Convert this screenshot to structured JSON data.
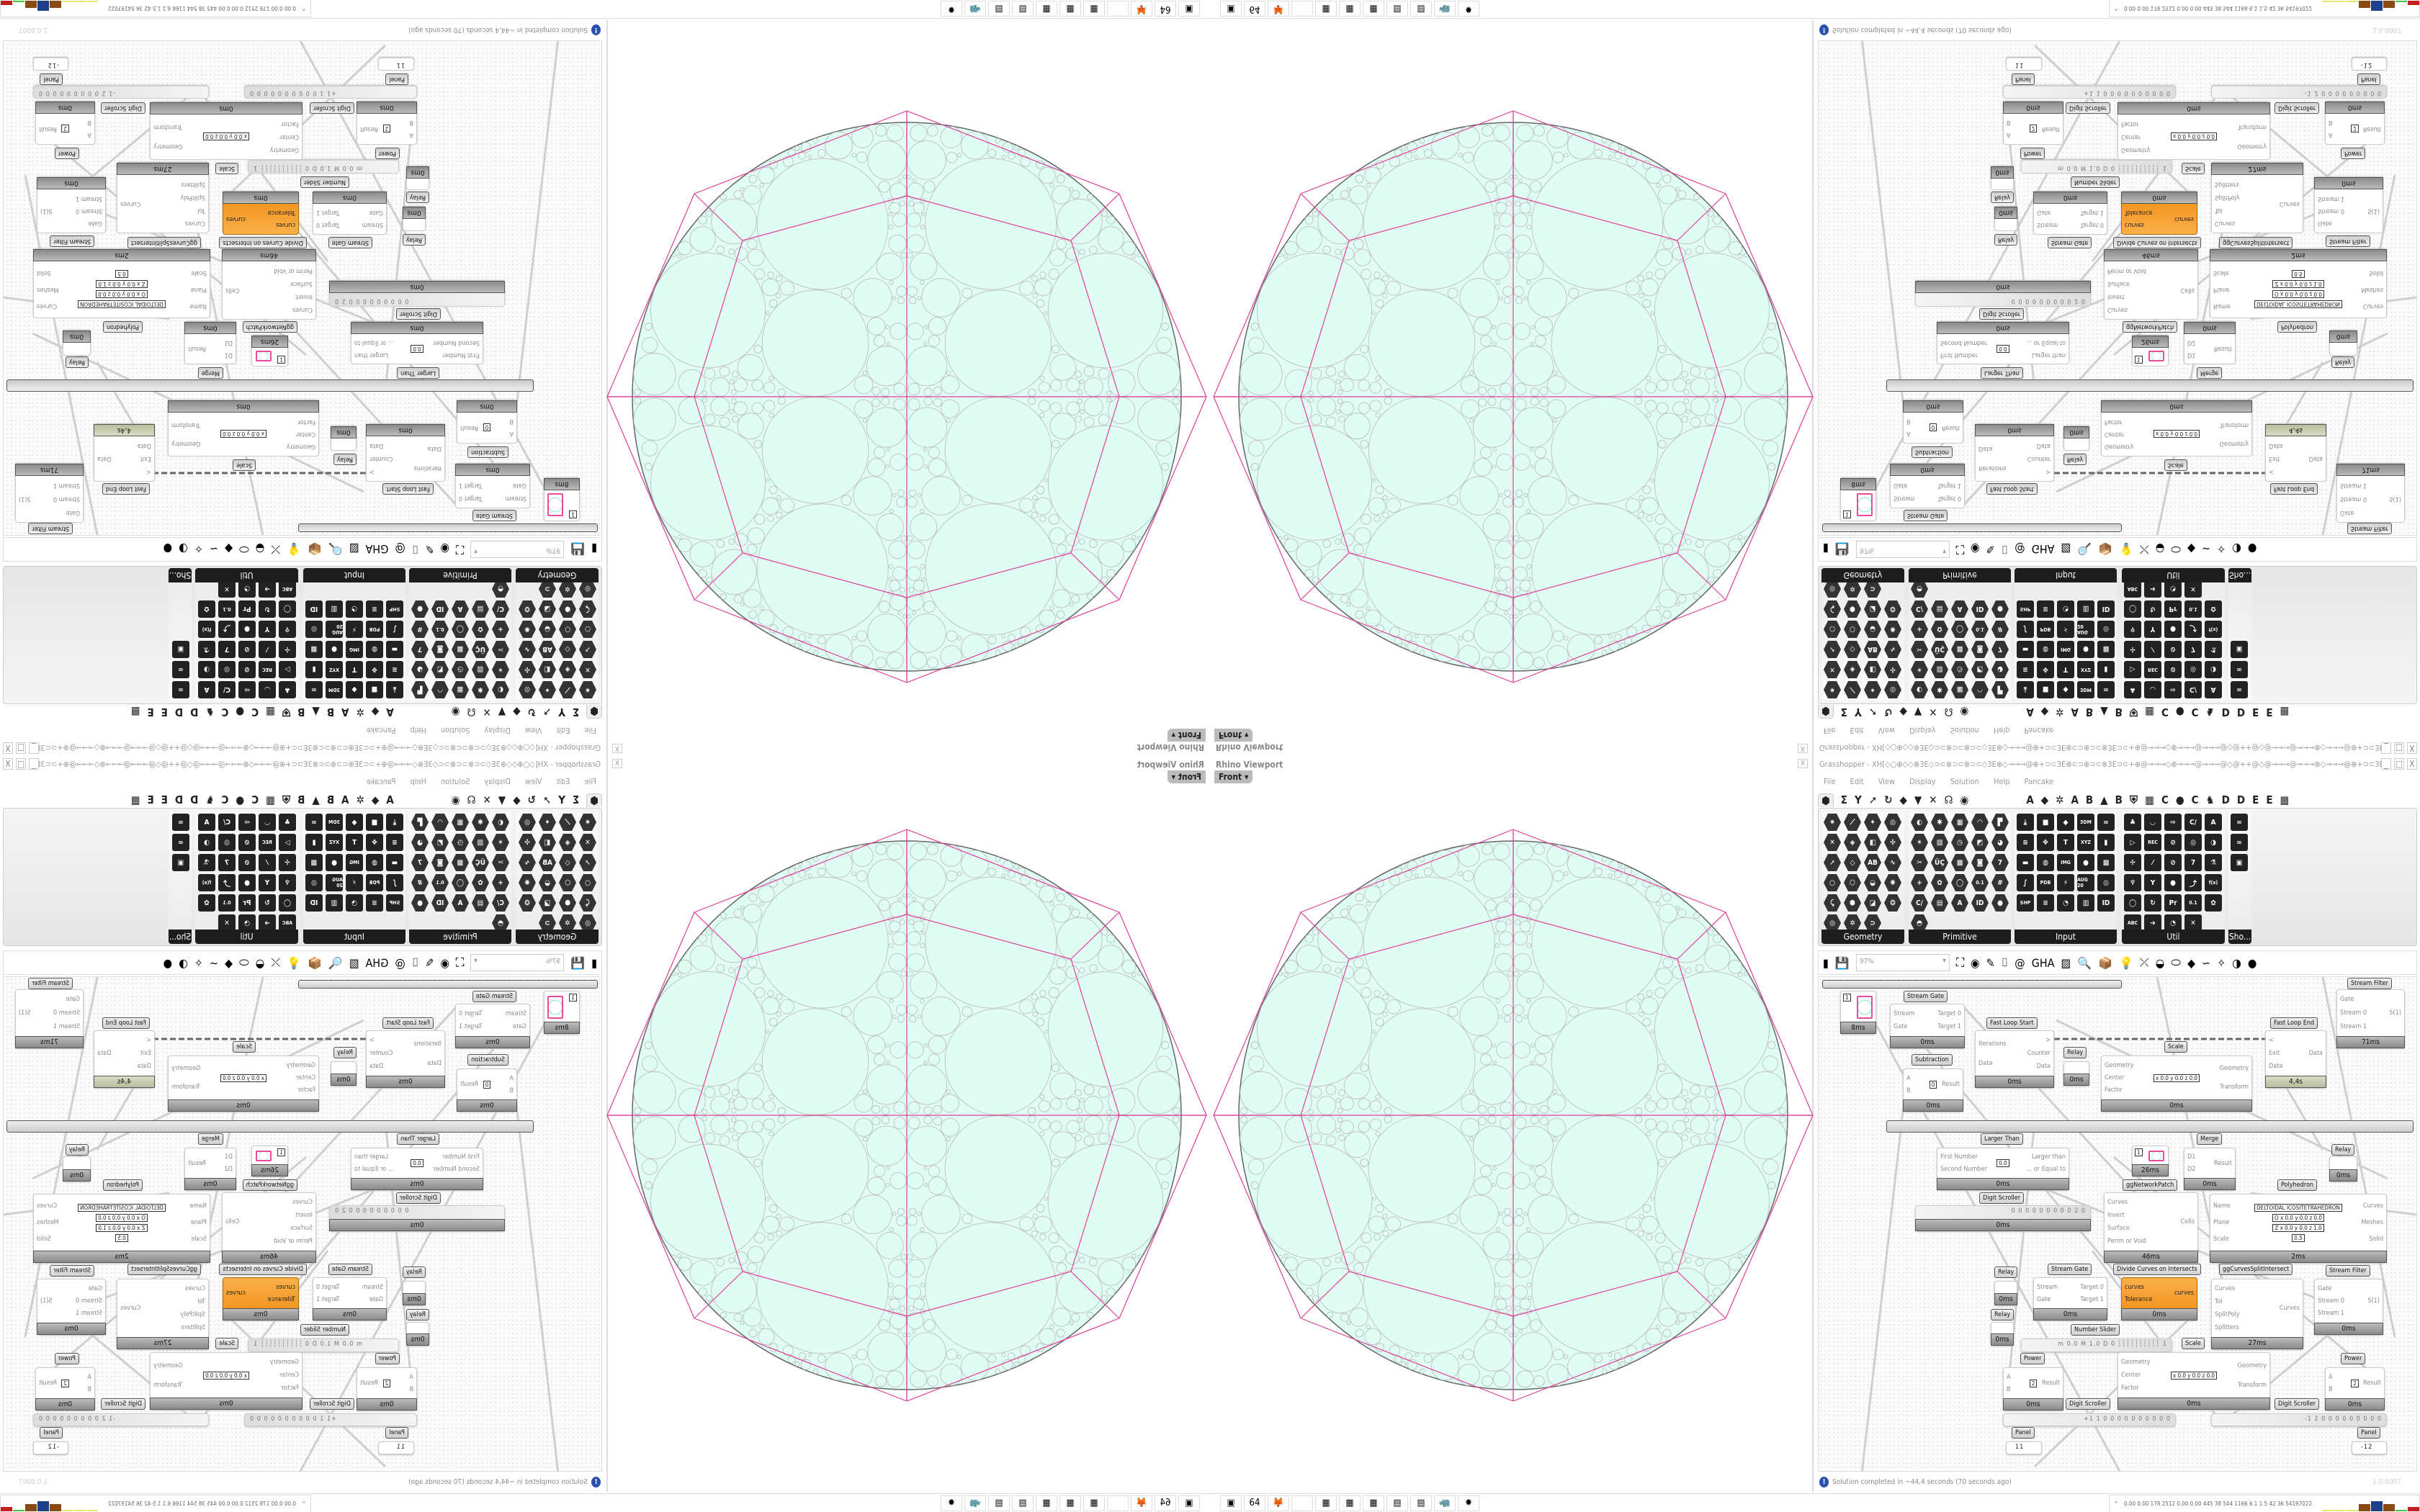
{
  "viewport": {
    "title": "Rhino Viewport",
    "view": "Front",
    "close": "X",
    "colors": {
      "fill": "#e0fdf4",
      "circle_stroke": "#c0c4c4",
      "boundary": "#666666",
      "polygon": "#e0409a"
    }
  },
  "grasshopper": {
    "title": "Grasshopper - XH[◇○⊕◇◇⊕3E◇⊃⊂⊗⊃⊂⊗⊃⊂◇3E⊕◇⊸⊸⊸@⊕+⊃⊂3E⊗⊂⊃⊗⊃⊂⊗3E⊃⊂+⊕@⊸⊸⊸◇⊗⊸⊸⊸@⊸⊸⊸@◇@++@◇@⊸⊸⊸@⊸⊸⊸⊗◇⊸⊸⊸@⊕+⊃⊂3E⊗⊂⊃⊗⊃⊂⊗⊃⊂...",
    "window_controls": [
      "_",
      "□",
      "X"
    ],
    "menu": [
      "File",
      "Edit",
      "View",
      "Display",
      "Solution",
      "Help",
      "Pancake"
    ],
    "tabs_left": [
      "⬢",
      "Σ",
      "Y",
      "➚",
      "↻",
      "◆",
      "▼",
      "✕",
      "☊",
      "◉"
    ],
    "tabs_right": [
      "A",
      "◆",
      "✲",
      "A",
      "B",
      "▲",
      "B",
      "⛨",
      "▦",
      "C",
      "●",
      "C",
      "♞",
      "D",
      "D",
      "E",
      "E",
      "▦"
    ],
    "panels": [
      {
        "name": "Geometry",
        "cols": 4,
        "icons": [
          "✷",
          "⟋",
          "✦",
          "◎",
          "✕",
          "◈",
          "◧",
          "✣",
          "➚",
          "◇",
          "AB",
          "∿",
          "○",
          "⬡",
          "◒",
          "✺",
          "⤹",
          "⬢",
          "◪",
          "❂",
          "◎",
          "✲",
          "⊃"
        ]
      },
      {
        "name": "Primitive",
        "cols": 5,
        "icons": [
          "◐",
          "✱",
          "▦",
          "◠",
          "▛",
          "✶",
          "▧",
          "◷",
          "◩",
          "◕",
          "✂",
          "ÜÇ",
          "▩",
          "◙",
          "7",
          "+",
          "✿",
          "◯",
          "0.1",
          "#",
          "C/",
          "▤",
          "A",
          "ID",
          "●",
          "◓"
        ]
      },
      {
        "name": "Input",
        "cols": 5,
        "icons": [
          "⤓",
          "■",
          "◆",
          "3DM",
          "∞",
          "≋",
          "✥",
          "T",
          "XYZ",
          "▮",
          "▬",
          "◍",
          "IMG",
          "●",
          "▩",
          "∫",
          "PDB",
          "⚡",
          "AUG 20",
          "◎",
          "SHP",
          "≡",
          "◔",
          "▥",
          "ID"
        ]
      },
      {
        "name": "Util",
        "cols": 5,
        "icons": [
          "♣",
          "◡",
          "⇨",
          "C/",
          "A",
          "▷",
          "REC",
          "⊘",
          "◎",
          "◑",
          "✢",
          "⁄",
          "⊘",
          "7",
          "⚗",
          "♆",
          "Y",
          "●",
          "⤴",
          "f(x)",
          "◯",
          "↻",
          "Pr",
          "0.1",
          "✿",
          "ABC",
          "➔",
          "◔",
          "✕"
        ]
      },
      {
        "name": "Sho...",
        "cols": 1,
        "icons": [
          "∞",
          "∞",
          "▣"
        ]
      }
    ],
    "toolbar": {
      "zoom": "97%",
      "icons": [
        "new-file",
        "save",
        "zoom-extents",
        "preview-eye",
        "sketch",
        "relay",
        "email",
        "gha",
        "bitmap",
        "search",
        "package",
        "bulb",
        "wires",
        "bowl",
        "ring",
        "cube",
        "knot",
        "ribbon",
        "sphere",
        "globe"
      ]
    },
    "toolbar_glyphs": [
      "▮",
      "💾",
      "⛶",
      "◉",
      "✎",
      "⌷",
      "@",
      "GHA",
      "▨",
      "🔍",
      "📦",
      "💡",
      "⤫",
      "◒",
      "⬭",
      "◆",
      "∽",
      "✧",
      "◑",
      "●"
    ],
    "canvas": {
      "nodes": [
        {
          "type": "swatch",
          "value": "1",
          "time": "8ms"
        },
        {
          "type": "comp",
          "label": "Stream Gate",
          "inputs": [
            "Stream",
            "Gate"
          ],
          "outputs": [
            "Target 0",
            "Target 1"
          ],
          "time": "0ms"
        },
        {
          "type": "comp",
          "label": "Fast Loop Start",
          "inputs": [
            "Iterations",
            "Data"
          ],
          "outputs": [
            ">",
            "Counter",
            "Data"
          ],
          "time": "0ms"
        },
        {
          "type": "relay",
          "label": "Relay",
          "time": "0ms"
        },
        {
          "type": "comp",
          "label": "Subtraction",
          "inputs": [
            "A",
            "B"
          ],
          "outputs": [
            "Result"
          ],
          "values": [
            "0"
          ],
          "time": "0ms"
        },
        {
          "type": "comp",
          "label": "Scale",
          "inputs": [
            "Geometry",
            "Center",
            "Factor"
          ],
          "outputs": [
            "Geometry",
            "Transform"
          ],
          "values": [
            "x 0.0  y 0.0  z 0.0"
          ],
          "time": "0ms"
        },
        {
          "type": "comp",
          "label": "Fast Loop End",
          "inputs": [
            "<",
            "Exit",
            "Data"
          ],
          "outputs": [
            "Data"
          ],
          "time": "4,4s",
          "slow": true
        },
        {
          "type": "comp",
          "label": "Stream Filter",
          "inputs": [
            "Gate",
            "Stream 0",
            "Stream 1"
          ],
          "outputs": [
            "S(1)"
          ],
          "time": "71ms"
        },
        {
          "type": "comp",
          "label": "Larger Than",
          "inputs": [
            "First Number",
            "Second Number"
          ],
          "outputs": [
            "Larger than",
            "... or Equal to"
          ],
          "values": [
            "0.0"
          ],
          "time": "0ms"
        },
        {
          "type": "swatch",
          "value": "1",
          "time": "26ms"
        },
        {
          "type": "comp",
          "label": "Merge",
          "inputs": [
            "D1",
            "D2"
          ],
          "outputs": [
            "Result"
          ],
          "time": "0ms"
        },
        {
          "type": "relay",
          "label": "Relay",
          "time": "0ms"
        },
        {
          "type": "scroller",
          "label": "Digit Scroller",
          "value": "0 0 0 0 0 0 0 0 0 2 0",
          "time": "0ms"
        },
        {
          "type": "comp",
          "label": "ggNetworkPatch",
          "inputs": [
            "Curves",
            "Invert",
            "Surface",
            "Perim or Void"
          ],
          "outputs": [
            "Cells"
          ],
          "time": "46ms"
        },
        {
          "type": "comp",
          "label": "Polyhedron",
          "inputs": [
            "Name",
            "Plane",
            "Scale"
          ],
          "outputs": [
            "Curves",
            "Meshes",
            "Solid"
          ],
          "values": [
            "DELTOIDAL ICOSITETRAHEDRON",
            "O x 0.0 y 0.0 z 0.0",
            "Z x 0.0 y 0.0 z 1.0",
            "0.5"
          ],
          "time": "2ms"
        },
        {
          "type": "relay",
          "label": "Relay",
          "time": "0ms"
        },
        {
          "type": "comp",
          "label": "Stream Gate",
          "inputs": [
            "Stream",
            "Gate"
          ],
          "outputs": [
            "Target 0",
            "Target 1"
          ],
          "time": "0ms"
        },
        {
          "type": "comp",
          "label": "Divide Curves on Intersects",
          "inputs": [
            "curves",
            "Tolerance"
          ],
          "outputs": [
            "curves"
          ],
          "time": "0ms",
          "orange": true
        },
        {
          "type": "comp",
          "label": "ggCurvesSplitIntersect",
          "inputs": [
            "Curves",
            "Tol",
            "SplitPoly",
            "Splitters"
          ],
          "outputs": [
            "Curves"
          ],
          "time": "27ms"
        },
        {
          "type": "comp",
          "label": "Stream Filter",
          "inputs": [
            "Gate",
            "Stream 0",
            "Stream 1"
          ],
          "outputs": [
            "S(1)"
          ],
          "time": "0ms"
        },
        {
          "type": "relay",
          "label": "Relay",
          "time": "0ms"
        },
        {
          "type": "slider",
          "label": "Number Slider",
          "value": "m 0.0  M 1.0  D 0  ┆┆┆┆┆┆┆┆┆┆ 1"
        },
        {
          "type": "comp",
          "label": "Power",
          "inputs": [
            "A",
            "B"
          ],
          "outputs": [
            "Result"
          ],
          "values": [
            "2"
          ],
          "time": "0ms"
        },
        {
          "type": "comp",
          "label": "Scale",
          "inputs": [
            "Geometry",
            "Center",
            "Factor"
          ],
          "outputs": [
            "Geometry",
            "Transform"
          ],
          "values": [
            "x 0.0  y 0.0  z 0.0"
          ],
          "time": "0ms"
        },
        {
          "type": "comp",
          "label": "Power",
          "inputs": [
            "A",
            "B"
          ],
          "outputs": [
            "Result"
          ],
          "values": [
            "2"
          ],
          "time": "0ms"
        },
        {
          "type": "scroller",
          "label": "Digit Scroller",
          "value": "+1 1 0 0 0 0 0 0 0 0 0 0"
        },
        {
          "type": "scroller",
          "label": "Digit Scroller",
          "value": "-1 2 0 0 0 0 0 0 0 0 0"
        },
        {
          "type": "panel",
          "label": "Panel",
          "value": "11"
        },
        {
          "type": "panel",
          "label": "Panel",
          "value": "-12"
        }
      ]
    },
    "status": {
      "message": "Solution completed in ~44,4 seconds (70 seconds ago)",
      "version": "1.0.0007"
    }
  },
  "taskbar": {
    "icons": [
      {
        "name": "terminal",
        "glyph": "▣"
      },
      {
        "name": "floppy-64",
        "glyph": "64"
      },
      {
        "name": "firefox",
        "glyph": "🦊"
      },
      {
        "name": "blank",
        "glyph": ""
      },
      {
        "name": "calculator",
        "glyph": "▦"
      },
      {
        "name": "calculator",
        "glyph": "▦"
      },
      {
        "name": "calculator",
        "glyph": "▦"
      },
      {
        "name": "notepad",
        "glyph": "▤"
      },
      {
        "name": "notepad",
        "glyph": "▤"
      },
      {
        "name": "rhino",
        "glyph": "🦏"
      },
      {
        "name": "red-app",
        "glyph": "✹"
      }
    ],
    "expand": "^",
    "metrics": "0.00 0.00 178 2512 0.00 0.00 445 38 544 1166 6.1 1.5 42 36 54197022",
    "meter_colors": [
      "#e8e870",
      "#e8e870",
      "#e8e870",
      "#8b4a12",
      "#1e3f8a",
      "#8b4a12",
      "#44c844",
      "#c02020"
    ]
  }
}
